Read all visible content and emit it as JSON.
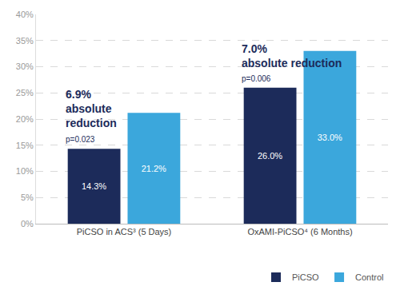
{
  "chart_data": {
    "type": "bar",
    "categories": [
      "PiCSO in ACS³ (5 Days)",
      "OxAMI-PiCSO⁴ (6 Months)"
    ],
    "series": [
      {
        "name": "PiCSO",
        "color": "#1c2b5a",
        "values": [
          14.3,
          26.0
        ],
        "value_labels": [
          "14.3%",
          "26.0%"
        ]
      },
      {
        "name": "Control",
        "color": "#3ba7dc",
        "values": [
          21.2,
          33.0
        ],
        "value_labels": [
          "21.2%",
          "33.0%"
        ]
      }
    ],
    "ylim": [
      0,
      40
    ],
    "yticks": [
      {
        "value": 0,
        "label": "0%"
      },
      {
        "value": 5,
        "label": "5%"
      },
      {
        "value": 10,
        "label": "10%"
      },
      {
        "value": 15,
        "label": "15%"
      },
      {
        "value": 20,
        "label": "20%"
      },
      {
        "value": 25,
        "label": "25%"
      },
      {
        "value": 30,
        "label": "30%"
      },
      {
        "value": 35,
        "label": "35%"
      },
      {
        "value": 40,
        "label": "40%"
      }
    ],
    "grid": true,
    "legend": "bottom right",
    "data_labels": true,
    "annotations": [
      {
        "category": "PiCSO in ACS³ (5 Days)",
        "text": [
          "6.9%",
          "absolute",
          "reduction"
        ],
        "p_value": "p=0.023"
      },
      {
        "category": "OxAMI-PiCSO⁴ (6 Months)",
        "text": [
          "7.0%",
          "absolute reduction"
        ],
        "p_value": "p=0.006"
      }
    ]
  }
}
